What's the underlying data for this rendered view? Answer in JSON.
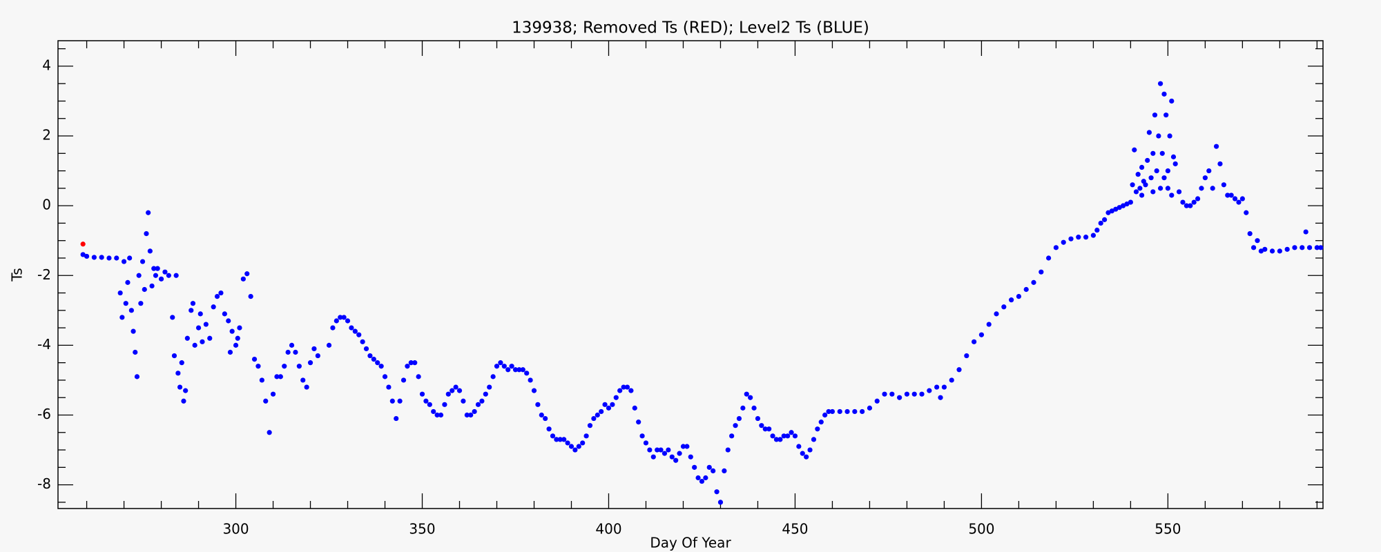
{
  "chart_data": {
    "type": "scatter",
    "title": "139938; Removed Ts (RED); Level2 Ts (BLUE)",
    "x_label": "Day Of Year",
    "y_label": "Ts",
    "xlim": [
      252.3,
      591.6
    ],
    "ylim": [
      -8.68,
      4.73
    ],
    "xticks": [
      300,
      350,
      400,
      450,
      500,
      550
    ],
    "yticks": [
      -8,
      -6,
      -4,
      -2,
      0,
      2,
      4
    ],
    "xminor_ticks": [
      260,
      270,
      280,
      290,
      310,
      320,
      330,
      340,
      360,
      370,
      380,
      390,
      410,
      420,
      430,
      440,
      460,
      470,
      480,
      490,
      510,
      520,
      530,
      540,
      560,
      570,
      580,
      590
    ],
    "yminor_ticks": [
      -8.5,
      -7.5,
      -7,
      -6.5,
      -5.5,
      -5,
      -4.5,
      -3.5,
      -3,
      -2.5,
      -1.5,
      -1,
      -0.5,
      0.5,
      1,
      1.5,
      2.5,
      3,
      3.5,
      4.5
    ],
    "series": [
      {
        "name": "Removed Ts",
        "color": "#ff0000",
        "x": [
          259
        ],
        "values": [
          -1.1
        ]
      },
      {
        "name": "Level2 Ts",
        "color": "#0000ff",
        "x": [
          259,
          260,
          262,
          264,
          266,
          268,
          269,
          269.5,
          270,
          270.5,
          271,
          271.5,
          272,
          272.5,
          273,
          273.5,
          274,
          274.5,
          275,
          275.5,
          276,
          276.5,
          277,
          277.5,
          278,
          278.5,
          279,
          280,
          281,
          282,
          283,
          283.5,
          284,
          284.5,
          285,
          285.5,
          286,
          286.5,
          287,
          288,
          288.5,
          289,
          290,
          290.5,
          291,
          292,
          293,
          294,
          295,
          296,
          297,
          298,
          298.5,
          299,
          300,
          300.5,
          301,
          302,
          303,
          304,
          305,
          306,
          307,
          308,
          309,
          310,
          311,
          312,
          313,
          314,
          315,
          316,
          317,
          318,
          319,
          320,
          321,
          322,
          325,
          326,
          327,
          328,
          329,
          330,
          331,
          332,
          333,
          334,
          335,
          336,
          337,
          338,
          339,
          340,
          341,
          342,
          343,
          344,
          345,
          346,
          347,
          348,
          349,
          350,
          351,
          352,
          353,
          354,
          355,
          356,
          357,
          358,
          359,
          360,
          361,
          362,
          363,
          364,
          365,
          366,
          367,
          368,
          369,
          370,
          371,
          372,
          373,
          374,
          375,
          376,
          377,
          378,
          379,
          380,
          381,
          382,
          383,
          384,
          385,
          386,
          387,
          388,
          389,
          390,
          391,
          392,
          393,
          394,
          395,
          396,
          397,
          398,
          399,
          400,
          401,
          402,
          403,
          404,
          405,
          406,
          407,
          408,
          409,
          410,
          411,
          412,
          413,
          414,
          415,
          416,
          417,
          418,
          419,
          420,
          421,
          422,
          423,
          424,
          425,
          426,
          427,
          428,
          429,
          430,
          431,
          432,
          433,
          434,
          435,
          436,
          437,
          438,
          439,
          440,
          441,
          442,
          443,
          444,
          445,
          446,
          447,
          448,
          449,
          450,
          451,
          452,
          453,
          454,
          455,
          456,
          457,
          458,
          459,
          460,
          462,
          464,
          466,
          468,
          470,
          472,
          474,
          476,
          478,
          480,
          482,
          484,
          486,
          488,
          489,
          490,
          492,
          494,
          496,
          498,
          500,
          502,
          504,
          506,
          508,
          510,
          512,
          514,
          516,
          518,
          520,
          522,
          524,
          526,
          528,
          530,
          531,
          532,
          533,
          534,
          535,
          536,
          537,
          538,
          539,
          540,
          540.5,
          541,
          541.5,
          542,
          542.5,
          543,
          543.5,
          544,
          544.5,
          545,
          545.5,
          546,
          546.5,
          547,
          547.5,
          548,
          548.5,
          549,
          549.5,
          550,
          550.5,
          551,
          551.5,
          552,
          553,
          554,
          555,
          556,
          557,
          558,
          559,
          560,
          561,
          562,
          563,
          564,
          565,
          566,
          567,
          568,
          569,
          570,
          571,
          572,
          573,
          574,
          575,
          576,
          578,
          580,
          582,
          584,
          586,
          587,
          588,
          590,
          591,
          543,
          546,
          548,
          549,
          550,
          551
        ],
        "values": [
          -1.4,
          -1.45,
          -1.48,
          -1.48,
          -1.5,
          -1.5,
          -2.5,
          -3.2,
          -1.6,
          -2.8,
          -2.2,
          -1.5,
          -3.0,
          -3.6,
          -4.2,
          -4.9,
          -2.0,
          -2.8,
          -1.6,
          -2.4,
          -0.8,
          -0.2,
          -1.3,
          -2.3,
          -1.8,
          -2.0,
          -1.8,
          -2.1,
          -1.9,
          -2.0,
          -3.2,
          -4.3,
          -2.0,
          -4.8,
          -5.2,
          -4.5,
          -5.6,
          -5.3,
          -3.8,
          -3.0,
          -2.8,
          -4.0,
          -3.5,
          -3.1,
          -3.9,
          -3.4,
          -3.8,
          -2.9,
          -2.6,
          -2.5,
          -3.1,
          -3.3,
          -4.2,
          -3.6,
          -4.0,
          -3.8,
          -3.5,
          -2.1,
          -1.95,
          -2.6,
          -4.4,
          -4.6,
          -5.0,
          -5.6,
          -6.5,
          -5.4,
          -4.9,
          -4.9,
          -4.6,
          -4.2,
          -4.0,
          -4.2,
          -4.6,
          -5.0,
          -5.2,
          -4.5,
          -4.1,
          -4.3,
          -4.0,
          -3.5,
          -3.3,
          -3.2,
          -3.2,
          -3.3,
          -3.5,
          -3.6,
          -3.7,
          -3.9,
          -4.1,
          -4.3,
          -4.4,
          -4.5,
          -4.6,
          -4.9,
          -5.2,
          -5.6,
          -6.1,
          -5.6,
          -5.0,
          -4.6,
          -4.5,
          -4.5,
          -4.9,
          -5.4,
          -5.6,
          -5.7,
          -5.9,
          -6.0,
          -6.0,
          -5.7,
          -5.4,
          -5.3,
          -5.2,
          -5.3,
          -5.6,
          -6.0,
          -6.0,
          -5.9,
          -5.7,
          -5.6,
          -5.4,
          -5.2,
          -4.9,
          -4.6,
          -4.5,
          -4.6,
          -4.7,
          -4.6,
          -4.7,
          -4.7,
          -4.7,
          -4.8,
          -5.0,
          -5.3,
          -5.7,
          -6.0,
          -6.1,
          -6.4,
          -6.6,
          -6.7,
          -6.7,
          -6.7,
          -6.8,
          -6.9,
          -7.0,
          -6.9,
          -6.8,
          -6.6,
          -6.3,
          -6.1,
          -6.0,
          -5.9,
          -5.7,
          -5.8,
          -5.7,
          -5.5,
          -5.3,
          -5.2,
          -5.2,
          -5.3,
          -5.8,
          -6.2,
          -6.6,
          -6.8,
          -7.0,
          -7.2,
          -7.0,
          -7.0,
          -7.1,
          -7.0,
          -7.2,
          -7.3,
          -7.1,
          -6.9,
          -6.9,
          -7.2,
          -7.5,
          -7.8,
          -7.9,
          -7.8,
          -7.5,
          -7.6,
          -8.2,
          -8.5,
          -7.6,
          -7.0,
          -6.6,
          -6.3,
          -6.1,
          -5.8,
          -5.4,
          -5.5,
          -5.8,
          -6.1,
          -6.3,
          -6.4,
          -6.4,
          -6.6,
          -6.7,
          -6.7,
          -6.6,
          -6.6,
          -6.5,
          -6.6,
          -6.9,
          -7.1,
          -7.2,
          -7.0,
          -6.7,
          -6.4,
          -6.2,
          -6.0,
          -5.9,
          -5.9,
          -5.9,
          -5.9,
          -5.9,
          -5.9,
          -5.8,
          -5.6,
          -5.4,
          -5.4,
          -5.5,
          -5.4,
          -5.4,
          -5.4,
          -5.3,
          -5.2,
          -5.5,
          -5.2,
          -5.0,
          -4.7,
          -4.3,
          -3.9,
          -3.7,
          -3.4,
          -3.1,
          -2.9,
          -2.7,
          -2.6,
          -2.4,
          -2.2,
          -1.9,
          -1.5,
          -1.2,
          -1.05,
          -0.95,
          -0.9,
          -0.9,
          -0.85,
          -0.7,
          -0.5,
          -0.4,
          -0.2,
          -0.15,
          -0.1,
          -0.05,
          0.0,
          0.05,
          0.1,
          0.6,
          1.6,
          0.4,
          0.9,
          0.5,
          1.1,
          0.7,
          0.6,
          1.3,
          2.1,
          0.8,
          1.5,
          2.6,
          1.0,
          2.0,
          3.5,
          1.5,
          3.2,
          2.6,
          0.5,
          2.0,
          3.0,
          1.4,
          1.2,
          0.4,
          0.1,
          0.0,
          0.0,
          0.1,
          0.2,
          0.5,
          0.8,
          1.0,
          0.5,
          1.7,
          1.2,
          0.6,
          0.3,
          0.3,
          0.2,
          0.1,
          0.2,
          -0.2,
          -0.8,
          -1.2,
          -1.0,
          -1.3,
          -1.25,
          -1.3,
          -1.3,
          -1.25,
          -1.2,
          -1.2,
          -0.75,
          -1.2,
          -1.2,
          -1.2,
          0.3,
          0.4,
          0.5,
          0.8,
          1.0,
          0.3
        ]
      }
    ]
  }
}
